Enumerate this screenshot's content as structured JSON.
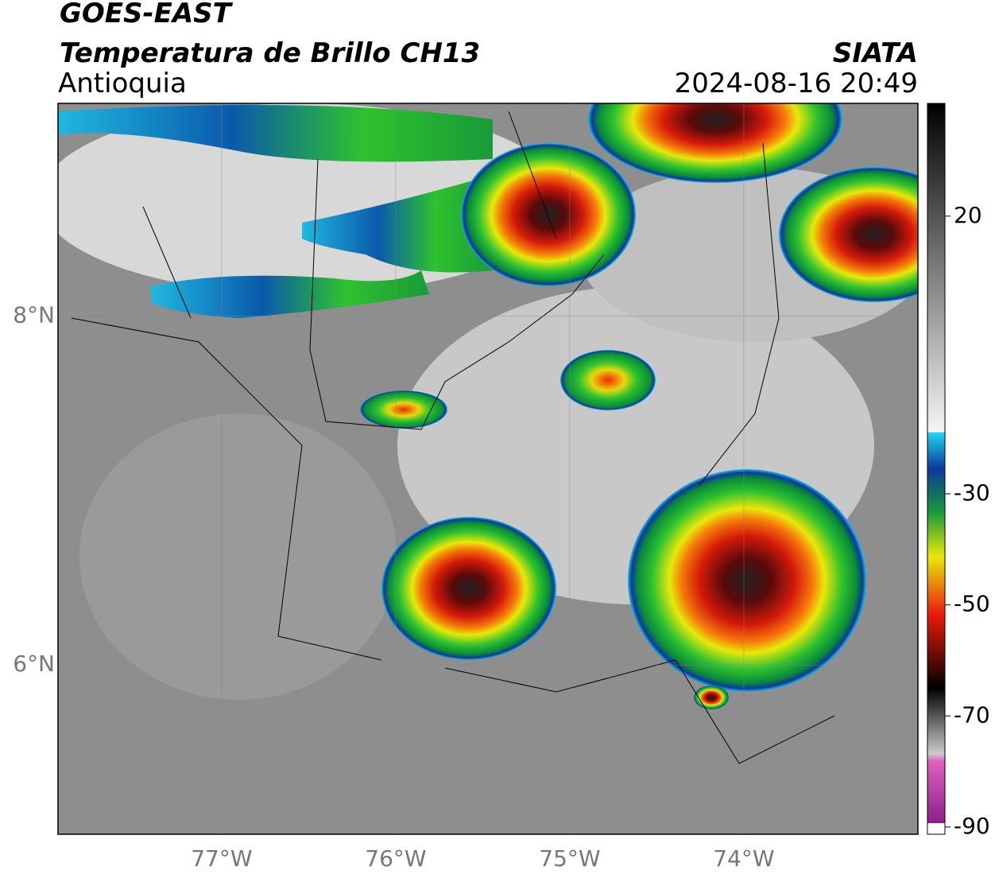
{
  "header": {
    "satellite": "GOES-EAST",
    "product": "Temperatura de Brillo CH13",
    "region": "Antioquia",
    "source": "SIATA",
    "datetime": "2024-08-16 20:49"
  },
  "map": {
    "lon_range": [
      -77.94,
      -73.0
    ],
    "lat_range": [
      5.03,
      9.22
    ],
    "lon_ticks": [
      {
        "value": -77,
        "label": "77°W"
      },
      {
        "value": -76,
        "label": "76°W"
      },
      {
        "value": -75,
        "label": "75°W"
      },
      {
        "value": -74,
        "label": "74°W"
      }
    ],
    "lat_ticks": [
      {
        "value": 8,
        "label": "8°N"
      },
      {
        "value": 6,
        "label": "6°N"
      }
    ]
  },
  "colorbar": {
    "range": [
      -91.3,
      40.3
    ],
    "ticks": [
      20,
      -30,
      -50,
      -70,
      -90
    ]
  }
}
